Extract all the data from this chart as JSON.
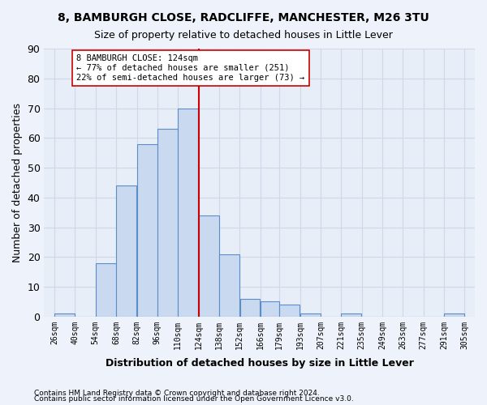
{
  "title1": "8, BAMBURGH CLOSE, RADCLIFFE, MANCHESTER, M26 3TU",
  "title2": "Size of property relative to detached houses in Little Lever",
  "xlabel": "Distribution of detached houses by size in Little Lever",
  "ylabel": "Number of detached properties",
  "bar_values": [
    1,
    0,
    18,
    44,
    58,
    63,
    70,
    34,
    21,
    6,
    5,
    4,
    1,
    0,
    1,
    0,
    0,
    0,
    0,
    1
  ],
  "bar_labels": [
    "26sqm",
    "40sqm",
    "54sqm",
    "68sqm",
    "82sqm",
    "96sqm",
    "110sqm",
    "124sqm",
    "138sqm",
    "152sqm",
    "166sqm",
    "179sqm",
    "193sqm",
    "207sqm",
    "221sqm",
    "235sqm",
    "249sqm",
    "263sqm",
    "277sqm",
    "291sqm",
    "305sqm"
  ],
  "bin_edges": [
    26,
    40,
    54,
    68,
    82,
    96,
    110,
    124,
    138,
    152,
    166,
    179,
    193,
    207,
    221,
    235,
    249,
    263,
    277,
    291,
    305
  ],
  "bar_color": "#c9d9f0",
  "bar_edge_color": "#5b8ec7",
  "property_size": 124,
  "vline_color": "#cc0000",
  "annotation_line1": "8 BAMBURGH CLOSE: 124sqm",
  "annotation_line2": "← 77% of detached houses are smaller (251)",
  "annotation_line3": "22% of semi-detached houses are larger (73) →",
  "annotation_box_color": "white",
  "annotation_box_edge_color": "#cc0000",
  "ylim": [
    0,
    90
  ],
  "yticks": [
    0,
    10,
    20,
    30,
    40,
    50,
    60,
    70,
    80,
    90
  ],
  "grid_color": "#d0d8e8",
  "footer1": "Contains HM Land Registry data © Crown copyright and database right 2024.",
  "footer2": "Contains public sector information licensed under the Open Government Licence v3.0.",
  "bg_color": "#eef2fa",
  "plot_bg_color": "#e8eef8"
}
